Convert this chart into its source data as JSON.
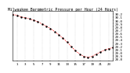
{
  "title": "Milwaukee Barometric Pressure per Hour (24 Hours)",
  "x_values": [
    0,
    1,
    2,
    3,
    4,
    5,
    6,
    7,
    8,
    9,
    10,
    11,
    12,
    13,
    14,
    15,
    16,
    17,
    18,
    19,
    20,
    21,
    22,
    23,
    24
  ],
  "y_values": [
    30.18,
    30.15,
    30.1,
    30.08,
    30.04,
    30.0,
    29.95,
    29.88,
    29.82,
    29.74,
    29.65,
    29.55,
    29.44,
    29.32,
    29.18,
    29.05,
    28.95,
    28.88,
    28.85,
    28.88,
    28.95,
    29.02,
    29.08,
    29.12,
    29.15
  ],
  "line_color": "#ff0000",
  "marker_color": "#000000",
  "bg_color": "#ffffff",
  "grid_color": "#888888",
  "ylim_min": 28.75,
  "ylim_max": 30.28,
  "title_fontsize": 3.5,
  "tick_fontsize": 3.0,
  "ytick_labels": [
    "30.2",
    "30.1",
    "30.0",
    "29.9",
    "29.8",
    "29.7",
    "29.6",
    "29.5",
    "29.4",
    "29.3",
    "29.2",
    "29.1",
    "29.0",
    "28.9",
    "28.8"
  ],
  "ytick_values": [
    30.2,
    30.1,
    30.0,
    29.9,
    29.8,
    29.7,
    29.6,
    29.5,
    29.4,
    29.3,
    29.2,
    29.1,
    29.0,
    28.9,
    28.8
  ],
  "xtick_step": 2,
  "xtick_values": [
    1,
    3,
    5,
    7,
    9,
    11,
    13,
    15,
    17,
    19,
    21,
    23
  ],
  "xtick_labels": [
    "1",
    "3",
    "5",
    "7",
    "9",
    "11",
    "13",
    "15",
    "17",
    "19",
    "21",
    "23"
  ]
}
